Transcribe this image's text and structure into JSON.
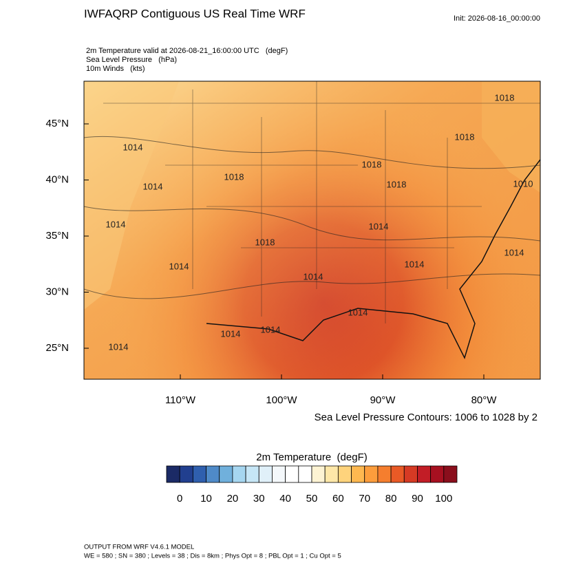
{
  "header": {
    "title": "IWFAQRP Contiguous US Real Time WRF",
    "init": "Init: 2026-08-16_00:00:00",
    "fields": [
      "2m Temperature valid at 2026-08-21_16:00:00 UTC   (degF)",
      "Sea Level Pressure   (hPa)",
      "10m Winds   (kts)"
    ]
  },
  "map": {
    "lon_ticks": [
      {
        "value": -110,
        "label": "110°W"
      },
      {
        "value": -100,
        "label": "100°W"
      },
      {
        "value": -90,
        "label": "90°W"
      },
      {
        "value": -80,
        "label": "80°W"
      }
    ],
    "lat_ticks": [
      {
        "value": 45,
        "label": "45°N"
      },
      {
        "value": 40,
        "label": "40°N"
      },
      {
        "value": 35,
        "label": "35°N"
      },
      {
        "value": 30,
        "label": "30°N"
      },
      {
        "value": 25,
        "label": "25°N"
      }
    ],
    "pressure_labels": [
      "1014",
      "1014",
      "1014",
      "1014",
      "1018",
      "1018",
      "1014",
      "1014",
      "1014",
      "1014",
      "1014",
      "1018",
      "1018",
      "1018",
      "1018",
      "1010",
      "1014",
      "1014",
      "1014"
    ],
    "contour_note": "Sea Level Pressure Contours: 1006 to 1028 by 2"
  },
  "colorbar": {
    "title": "2m Temperature  (degF)",
    "colors": [
      "#1b2a66",
      "#213f8f",
      "#2f5fae",
      "#4f8ac8",
      "#70b0dc",
      "#a6d6f0",
      "#c6e6f6",
      "#e0f0f9",
      "#f4f8fb",
      "#ffffff",
      "#ffffff",
      "#fdf3d3",
      "#fee7a8",
      "#fed37c",
      "#feb850",
      "#fc9d3c",
      "#f57e2e",
      "#e95a26",
      "#d63a24",
      "#c21d26",
      "#a71020",
      "#8a0e1c"
    ],
    "ticks": [
      0,
      10,
      20,
      30,
      40,
      50,
      60,
      70,
      80,
      90,
      100
    ]
  },
  "footer": [
    "OUTPUT FROM WRF V4.6.1 MODEL",
    "WE = 580 ; SN = 380 ; Levels = 38 ; Dis = 8km ; Phys Opt = 8 ; PBL Opt = 1 ; Cu Opt = 5"
  ]
}
